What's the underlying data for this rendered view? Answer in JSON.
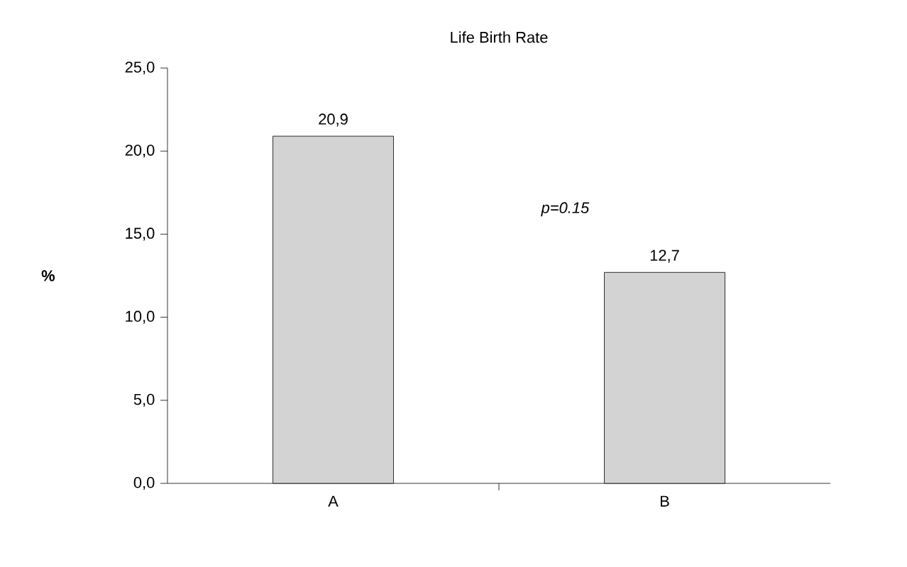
{
  "chart_data": {
    "type": "bar",
    "title": "Life Birth Rate",
    "ylabel": "%",
    "categories": [
      "A",
      "B"
    ],
    "values": [
      20.9,
      12.7
    ],
    "value_labels": [
      "20,9",
      "12,7"
    ],
    "color": "#d3d3d3",
    "ylim": [
      0,
      25
    ],
    "yticks": [
      {
        "value": 0,
        "label": "0,0"
      },
      {
        "value": 5,
        "label": "5,0"
      },
      {
        "value": 10,
        "label": "10,0"
      },
      {
        "value": 15,
        "label": "15,0"
      },
      {
        "value": 20,
        "label": "20,0"
      },
      {
        "value": 25,
        "label": "25,0"
      }
    ],
    "annotations": [
      "p=0.15"
    ],
    "tick_labels": "xy"
  }
}
